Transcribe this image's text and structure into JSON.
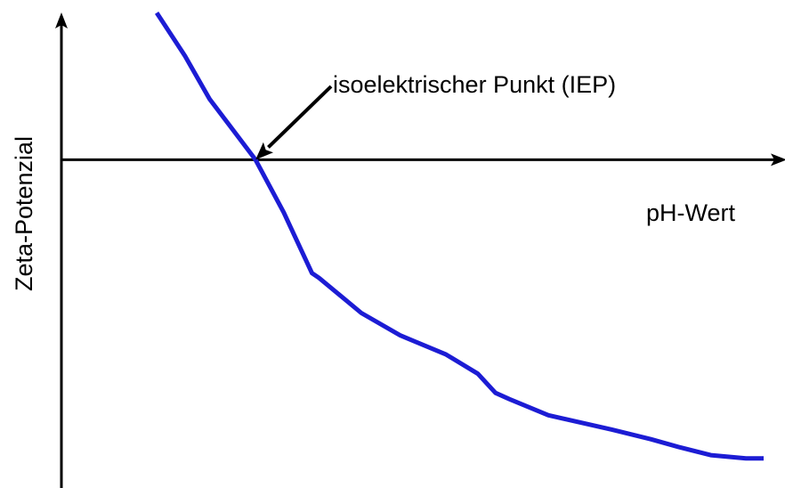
{
  "chart_data": {
    "type": "line",
    "title": "",
    "xlabel": "pH-Wert",
    "ylabel": "Zeta-Potenzial",
    "xlim": [
      0,
      100
    ],
    "ylim": [
      -100,
      45
    ],
    "grid": false,
    "axis_ticks": false,
    "legend": "none",
    "colors": {
      "curve": "#1c1cd4",
      "axes": "#000000"
    },
    "series": [
      {
        "x": [
          13.5,
          17.5,
          21.0,
          27.5,
          31.5,
          35.5,
          36.5,
          42.5,
          48.0,
          54.5,
          59.0,
          61.5,
          63.5,
          69.0,
          78.0,
          83.5,
          87.5,
          92.0,
          97.0,
          99.5
        ],
        "y": [
          46.0,
          32.5,
          19.0,
          0.0,
          -16.5,
          -35.5,
          -37.0,
          -48.0,
          -55.0,
          -61.0,
          -67.0,
          -73.0,
          -75.0,
          -80.0,
          -84.5,
          -87.5,
          -90.0,
          -92.5,
          -93.5,
          -93.5
        ]
      }
    ],
    "annotations": [
      {
        "text": "isoelektrischer Punkt (IEP)",
        "x": 27.5,
        "y": 0.0,
        "target": "zero-crossing"
      }
    ]
  }
}
